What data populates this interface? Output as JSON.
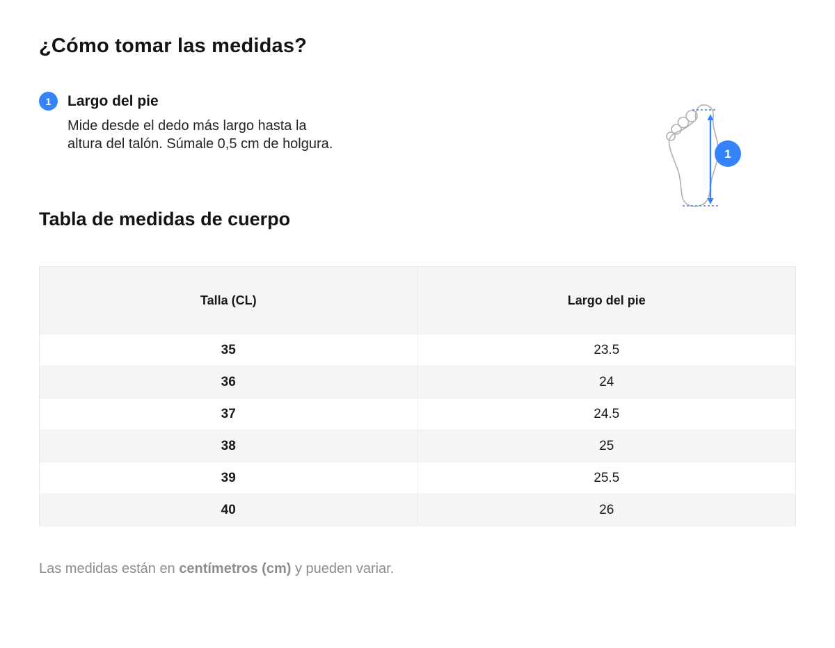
{
  "accent_color": "#3483fa",
  "title": "¿Cómo tomar las medidas?",
  "instruction": {
    "badge": "1",
    "label": "Largo del pie",
    "description_lines": [
      "Mide desde el dedo más largo hasta la",
      "altura del talón. Súmale 0,5 cm de holgura."
    ]
  },
  "diagram": {
    "badge": "1"
  },
  "table": {
    "title": "Tabla de medidas de cuerpo",
    "columns": [
      "Talla (CL)",
      "Largo del pie"
    ],
    "rows": [
      [
        "35",
        "23.5"
      ],
      [
        "36",
        "24"
      ],
      [
        "37",
        "24.5"
      ],
      [
        "38",
        "25"
      ],
      [
        "39",
        "25.5"
      ],
      [
        "40",
        "26"
      ]
    ]
  },
  "footnote": {
    "prefix": "Las medidas están en ",
    "bold": "centímetros (cm)",
    "suffix": " y pueden variar."
  }
}
